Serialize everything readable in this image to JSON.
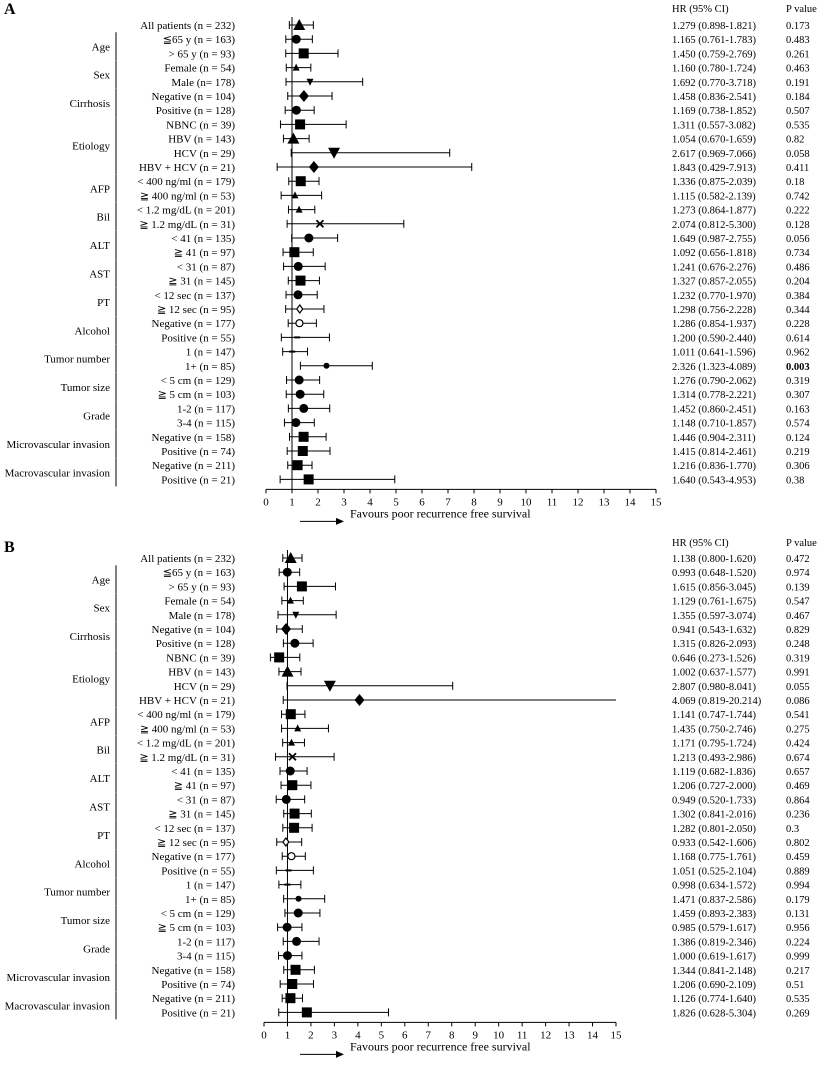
{
  "chart_data": [
    {
      "type": "forest",
      "panel_label": "A",
      "title": "",
      "xlabel": "Favours poor recurrence free survival",
      "xlim": [
        0,
        15
      ],
      "xticks": [
        0,
        1,
        2,
        3,
        4,
        5,
        6,
        7,
        8,
        9,
        10,
        11,
        12,
        13,
        14,
        15
      ],
      "reference_line": 1,
      "col_headers": {
        "hr": "HR (95% CI)",
        "p": "P value"
      },
      "groups": [
        {
          "label": "Age",
          "first": 1,
          "last": 2
        },
        {
          "label": "Sex",
          "first": 3,
          "last": 4
        },
        {
          "label": "Cirrhosis",
          "first": 5,
          "last": 6
        },
        {
          "label": "Etiology",
          "first": 7,
          "last": 10
        },
        {
          "label": "AFP",
          "first": 11,
          "last": 12
        },
        {
          "label": "Bil",
          "first": 13,
          "last": 14
        },
        {
          "label": "ALT",
          "first": 15,
          "last": 16
        },
        {
          "label": "AST",
          "first": 17,
          "last": 18
        },
        {
          "label": "PT",
          "first": 19,
          "last": 20
        },
        {
          "label": "Alcohol",
          "first": 21,
          "last": 22
        },
        {
          "label": "Tumor number",
          "first": 23,
          "last": 24
        },
        {
          "label": "Tumor size",
          "first": 25,
          "last": 26
        },
        {
          "label": "Grade",
          "first": 27,
          "last": 28
        },
        {
          "label": "Microvascular invasion",
          "first": 29,
          "last": 30
        },
        {
          "label": "Macrovascular invasion",
          "first": 31,
          "last": 32
        }
      ],
      "rows": [
        {
          "label": "All patients (n = 232)",
          "hr": 1.279,
          "lo": 0.898,
          "hi": 1.821,
          "hr_text": "1.279 (0.898-1.821)",
          "p": "0.173",
          "marker": "triangle"
        },
        {
          "label": "≦65 y (n = 163)",
          "hr": 1.165,
          "lo": 0.761,
          "hi": 1.783,
          "hr_text": "1.165 (0.761-1.783)",
          "p": "0.483",
          "marker": "circle"
        },
        {
          "label": "> 65 y (n = 93)",
          "hr": 1.45,
          "lo": 0.759,
          "hi": 2.769,
          "hr_text": "1.450 (0.759-2.769)",
          "p": "0.261",
          "marker": "square"
        },
        {
          "label": "Female (n = 54)",
          "hr": 1.16,
          "lo": 0.78,
          "hi": 1.724,
          "hr_text": "1.160 (0.780-1.724)",
          "p": "0.463",
          "marker": "smalltri"
        },
        {
          "label": "Male (n= 178)",
          "hr": 1.692,
          "lo": 0.77,
          "hi": 3.718,
          "hr_text": "1.692 (0.770-3.718)",
          "p": "0.191",
          "marker": "smalltri-down"
        },
        {
          "label": "Negative (n = 104)",
          "hr": 1.458,
          "lo": 0.836,
          "hi": 2.541,
          "hr_text": "1.458 (0.836-2.541)",
          "p": "0.184",
          "marker": "diamond"
        },
        {
          "label": "Positive (n = 128)",
          "hr": 1.169,
          "lo": 0.738,
          "hi": 1.852,
          "hr_text": "1.169 (0.738-1.852)",
          "p": "0.507",
          "marker": "circle"
        },
        {
          "label": "NBNC (n = 39)",
          "hr": 1.311,
          "lo": 0.557,
          "hi": 3.082,
          "hr_text": "1.311 (0.557-3.082)",
          "p": "0.535",
          "marker": "square"
        },
        {
          "label": "HBV (n = 143)",
          "hr": 1.054,
          "lo": 0.67,
          "hi": 1.659,
          "hr_text": "1.054 (0.670-1.659)",
          "p": "0.82",
          "marker": "triangle"
        },
        {
          "label": "HCV (n = 29)",
          "hr": 2.617,
          "lo": 0.969,
          "hi": 7.066,
          "hr_text": "2.617 (0.969-7.066)",
          "p": "0.058",
          "marker": "tri-down"
        },
        {
          "label": "HBV + HCV (n = 21)",
          "hr": 1.843,
          "lo": 0.429,
          "hi": 7.913,
          "hr_text": "1.843 (0.429-7.913)",
          "p": "0.411",
          "marker": "diamond"
        },
        {
          "label": "< 400 ng/ml (n = 179)",
          "hr": 1.336,
          "lo": 0.875,
          "hi": 2.039,
          "hr_text": "1.336 (0.875-2.039)",
          "p": "0.18",
          "marker": "square"
        },
        {
          "label": "≧ 400 ng/ml (n = 53)",
          "hr": 1.115,
          "lo": 0.582,
          "hi": 2.139,
          "hr_text": "1.115 (0.582-2.139)",
          "p": "0.742",
          "marker": "smalltri"
        },
        {
          "label": "< 1.2 mg/dL (n = 201)",
          "hr": 1.273,
          "lo": 0.864,
          "hi": 1.877,
          "hr_text": "1.273 (0.864-1.877)",
          "p": "0.222",
          "marker": "smalltri"
        },
        {
          "label": "≧ 1.2 mg/dL (n = 31)",
          "hr": 2.074,
          "lo": 0.812,
          "hi": 5.3,
          "hr_text": "2.074 (0.812-5.300)",
          "p": "0.128",
          "marker": "cross"
        },
        {
          "label": "< 41 (n = 135)",
          "hr": 1.649,
          "lo": 0.987,
          "hi": 2.755,
          "hr_text": "1.649 (0.987-2.755)",
          "p": "0.056",
          "marker": "circle"
        },
        {
          "label": "≧ 41 (n = 97)",
          "hr": 1.092,
          "lo": 0.656,
          "hi": 1.818,
          "hr_text": "1.092 (0.656-1.818)",
          "p": "0.734",
          "marker": "square"
        },
        {
          "label": "< 31 (n = 87)",
          "hr": 1.241,
          "lo": 0.676,
          "hi": 2.276,
          "hr_text": "1.241 (0.676-2.276)",
          "p": "0.486",
          "marker": "circle"
        },
        {
          "label": "≧ 31 (n = 145)",
          "hr": 1.327,
          "lo": 0.857,
          "hi": 2.055,
          "hr_text": "1.327 (0.857-2.055)",
          "p": "0.204",
          "marker": "square"
        },
        {
          "label": "< 12 sec (n = 137)",
          "hr": 1.232,
          "lo": 0.77,
          "hi": 1.97,
          "hr_text": "1.232 (0.770-1.970)",
          "p": "0.384",
          "marker": "circle"
        },
        {
          "label": "≧ 12 sec (n = 95)",
          "hr": 1.298,
          "lo": 0.756,
          "hi": 2.228,
          "hr_text": "1.298 (0.756-2.228)",
          "p": "0.344",
          "marker": "hollow-diamond"
        },
        {
          "label": "Negative (n = 177)",
          "hr": 1.286,
          "lo": 0.854,
          "hi": 1.937,
          "hr_text": "1.286 (0.854-1.937)",
          "p": "0.228",
          "marker": "hollow-circle"
        },
        {
          "label": "Positive (n = 55)",
          "hr": 1.2,
          "lo": 0.59,
          "hi": 2.44,
          "hr_text": "1.200 (0.590-2.440)",
          "p": "0.614",
          "marker": "dash"
        },
        {
          "label": "1 (n = 147)",
          "hr": 1.011,
          "lo": 0.641,
          "hi": 1.596,
          "hr_text": "1.011 (0.641-1.596)",
          "p": "0.962",
          "marker": "dash"
        },
        {
          "label": "1+ (n = 85)",
          "hr": 2.326,
          "lo": 1.323,
          "hi": 4.089,
          "hr_text": "2.326 (1.323-4.089)",
          "p": "0.003",
          "marker": "dot",
          "highlight": true
        },
        {
          "label": "< 5 cm (n = 129)",
          "hr": 1.276,
          "lo": 0.79,
          "hi": 2.062,
          "hr_text": "1.276 (0.790-2.062)",
          "p": "0.319",
          "marker": "circle"
        },
        {
          "label": "≧ 5 cm (n = 103)",
          "hr": 1.314,
          "lo": 0.778,
          "hi": 2.221,
          "hr_text": "1.314 (0.778-2.221)",
          "p": "0.307",
          "marker": "circle"
        },
        {
          "label": "1-2 (n = 117)",
          "hr": 1.452,
          "lo": 0.86,
          "hi": 2.451,
          "hr_text": "1.452 (0.860-2.451)",
          "p": "0.163",
          "marker": "circle"
        },
        {
          "label": "3-4 (n = 115)",
          "hr": 1.148,
          "lo": 0.71,
          "hi": 1.857,
          "hr_text": "1.148 (0.710-1.857)",
          "p": "0.574",
          "marker": "circle"
        },
        {
          "label": "Negative (n = 158)",
          "hr": 1.446,
          "lo": 0.904,
          "hi": 2.311,
          "hr_text": "1.446 (0.904-2.311)",
          "p": "0.124",
          "marker": "square"
        },
        {
          "label": "Positive (n = 74)",
          "hr": 1.415,
          "lo": 0.814,
          "hi": 2.461,
          "hr_text": "1.415 (0.814-2.461)",
          "p": "0.219",
          "marker": "square"
        },
        {
          "label": "Negative (n = 211)",
          "hr": 1.216,
          "lo": 0.836,
          "hi": 1.77,
          "hr_text": "1.216 (0.836-1.770)",
          "p": "0.306",
          "marker": "square"
        },
        {
          "label": "Positive (n = 21)",
          "hr": 1.64,
          "lo": 0.543,
          "hi": 4.953,
          "hr_text": "1.640 (0.543-4.953)",
          "p": "0.38",
          "marker": "square"
        }
      ]
    },
    {
      "type": "forest",
      "panel_label": "B",
      "title": "",
      "xlabel": "Favours poor recurrence free survival",
      "xlim": [
        0,
        15
      ],
      "xticks": [
        0,
        1,
        2,
        3,
        4,
        5,
        6,
        7,
        8,
        9,
        10,
        11,
        12,
        13,
        14,
        15
      ],
      "reference_line": 1,
      "col_headers": {
        "hr": "HR (95% CI)",
        "p": "P value"
      },
      "groups": [
        {
          "label": "Age",
          "first": 1,
          "last": 2
        },
        {
          "label": "Sex",
          "first": 3,
          "last": 4
        },
        {
          "label": "Cirrhosis",
          "first": 5,
          "last": 6
        },
        {
          "label": "Etiology",
          "first": 7,
          "last": 10
        },
        {
          "label": "AFP",
          "first": 11,
          "last": 12
        },
        {
          "label": "Bil",
          "first": 13,
          "last": 14
        },
        {
          "label": "ALT",
          "first": 15,
          "last": 16
        },
        {
          "label": "AST",
          "first": 17,
          "last": 18
        },
        {
          "label": "PT",
          "first": 19,
          "last": 20
        },
        {
          "label": "Alcohol",
          "first": 21,
          "last": 22
        },
        {
          "label": "Tumor number",
          "first": 23,
          "last": 24
        },
        {
          "label": "Tumor size",
          "first": 25,
          "last": 26
        },
        {
          "label": "Grade",
          "first": 27,
          "last": 28
        },
        {
          "label": "Microvascular invasion",
          "first": 29,
          "last": 30
        },
        {
          "label": "Macrovascular invasion",
          "first": 31,
          "last": 32
        }
      ],
      "rows": [
        {
          "label": "All patients (n = 232)",
          "hr": 1.138,
          "lo": 0.8,
          "hi": 1.62,
          "hr_text": "1.138 (0.800-1.620)",
          "p": "0.472",
          "marker": "triangle"
        },
        {
          "label": "≦65 y (n = 163)",
          "hr": 0.993,
          "lo": 0.648,
          "hi": 1.52,
          "hr_text": "0.993 (0.648-1.520)",
          "p": "0.974",
          "marker": "circle"
        },
        {
          "label": "> 65 y (n = 93)",
          "hr": 1.615,
          "lo": 0.856,
          "hi": 3.045,
          "hr_text": "1.615 (0.856-3.045)",
          "p": "0.139",
          "marker": "square"
        },
        {
          "label": "Female (n = 54)",
          "hr": 1.129,
          "lo": 0.761,
          "hi": 1.675,
          "hr_text": "1.129 (0.761-1.675)",
          "p": "0.547",
          "marker": "smalltri"
        },
        {
          "label": "Male (n = 178)",
          "hr": 1.355,
          "lo": 0.597,
          "hi": 3.074,
          "hr_text": "1.355 (0.597-3.074)",
          "p": "0.467",
          "marker": "smalltri-down"
        },
        {
          "label": "Negative (n = 104)",
          "hr": 0.941,
          "lo": 0.543,
          "hi": 1.632,
          "hr_text": "0.941 (0.543-1.632)",
          "p": "0.829",
          "marker": "diamond"
        },
        {
          "label": "Positive (n = 128)",
          "hr": 1.315,
          "lo": 0.826,
          "hi": 2.093,
          "hr_text": "1.315 (0.826-2.093)",
          "p": "0.248",
          "marker": "circle"
        },
        {
          "label": "NBNC (n = 39)",
          "hr": 0.646,
          "lo": 0.273,
          "hi": 1.526,
          "hr_text": "0.646 (0.273-1.526)",
          "p": "0.319",
          "marker": "square"
        },
        {
          "label": "HBV (n = 143)",
          "hr": 1.002,
          "lo": 0.637,
          "hi": 1.577,
          "hr_text": "1.002 (0.637-1.577)",
          "p": "0.991",
          "marker": "triangle"
        },
        {
          "label": "HCV (n = 29)",
          "hr": 2.807,
          "lo": 0.98,
          "hi": 8.041,
          "hr_text": "2.807 (0.980-8.041)",
          "p": "0.055",
          "marker": "tri-down"
        },
        {
          "label": "HBV + HCV (n = 21)",
          "hr": 4.069,
          "lo": 0.819,
          "hi": 20.214,
          "hr_text": "4.069 (0.819-20.214)",
          "p": "0.086",
          "marker": "diamond"
        },
        {
          "label": "< 400 ng/ml (n = 179)",
          "hr": 1.141,
          "lo": 0.747,
          "hi": 1.744,
          "hr_text": "1.141 (0.747-1.744)",
          "p": "0.541",
          "marker": "square"
        },
        {
          "label": "≧ 400 ng/ml (n = 53)",
          "hr": 1.435,
          "lo": 0.75,
          "hi": 2.746,
          "hr_text": "1.435 (0.750-2.746)",
          "p": "0.275",
          "marker": "smalltri"
        },
        {
          "label": "< 1.2 mg/dL (n = 201)",
          "hr": 1.171,
          "lo": 0.795,
          "hi": 1.724,
          "hr_text": "1.171 (0.795-1.724)",
          "p": "0.424",
          "marker": "smalltri"
        },
        {
          "label": "≧ 1.2 mg/dL (n = 31)",
          "hr": 1.213,
          "lo": 0.493,
          "hi": 2.986,
          "hr_text": "1.213 (0.493-2.986)",
          "p": "0.674",
          "marker": "cross"
        },
        {
          "label": "< 41 (n = 135)",
          "hr": 1.119,
          "lo": 0.682,
          "hi": 1.836,
          "hr_text": "1.119 (0.682-1.836)",
          "p": "0.657",
          "marker": "circle"
        },
        {
          "label": "≧ 41 (n = 97)",
          "hr": 1.206,
          "lo": 0.727,
          "hi": 2.0,
          "hr_text": "1.206 (0.727-2.000)",
          "p": "0.469",
          "marker": "square"
        },
        {
          "label": "< 31 (n = 87)",
          "hr": 0.949,
          "lo": 0.52,
          "hi": 1.733,
          "hr_text": "0.949 (0.520-1.733)",
          "p": "0.864",
          "marker": "circle"
        },
        {
          "label": "≧ 31 (n = 145)",
          "hr": 1.302,
          "lo": 0.841,
          "hi": 2.016,
          "hr_text": "1.302 (0.841-2.016)",
          "p": "0.236",
          "marker": "square"
        },
        {
          "label": "< 12 sec (n = 137)",
          "hr": 1.282,
          "lo": 0.801,
          "hi": 2.05,
          "hr_text": "1.282 (0.801-2.050)",
          "p": "0.3",
          "marker": "square"
        },
        {
          "label": "≧ 12 sec (n = 95)",
          "hr": 0.933,
          "lo": 0.542,
          "hi": 1.606,
          "hr_text": "0.933 (0.542-1.606)",
          "p": "0.802",
          "marker": "hollow-diamond"
        },
        {
          "label": "Negative (n = 177)",
          "hr": 1.168,
          "lo": 0.775,
          "hi": 1.761,
          "hr_text": "1.168 (0.775-1.761)",
          "p": "0.459",
          "marker": "hollow-circle"
        },
        {
          "label": "Positive (n = 55)",
          "hr": 1.051,
          "lo": 0.525,
          "hi": 2.104,
          "hr_text": "1.051 (0.525-2.104)",
          "p": "0.889",
          "marker": "dash"
        },
        {
          "label": "1 (n = 147)",
          "hr": 0.998,
          "lo": 0.634,
          "hi": 1.572,
          "hr_text": "0.998 (0.634-1.572)",
          "p": "0.994",
          "marker": "dash"
        },
        {
          "label": "1+ (n = 85)",
          "hr": 1.471,
          "lo": 0.837,
          "hi": 2.586,
          "hr_text": "1.471 (0.837-2.586)",
          "p": "0.179",
          "marker": "dot"
        },
        {
          "label": "< 5 cm (n = 129)",
          "hr": 1.459,
          "lo": 0.893,
          "hi": 2.383,
          "hr_text": "1.459 (0.893-2.383)",
          "p": "0.131",
          "marker": "circle"
        },
        {
          "label": "≧ 5 cm (n = 103)",
          "hr": 0.985,
          "lo": 0.579,
          "hi": 1.617,
          "hr_text": "0.985 (0.579-1.617)",
          "p": "0.956",
          "marker": "circle"
        },
        {
          "label": "1-2 (n = 117)",
          "hr": 1.386,
          "lo": 0.819,
          "hi": 2.346,
          "hr_text": "1.386 (0.819-2.346)",
          "p": "0.224",
          "marker": "circle"
        },
        {
          "label": "3-4 (n = 115)",
          "hr": 1.0,
          "lo": 0.619,
          "hi": 1.617,
          "hr_text": "1.000 (0.619-1.617)",
          "p": "0.999",
          "marker": "circle"
        },
        {
          "label": "Negative (n = 158)",
          "hr": 1.344,
          "lo": 0.841,
          "hi": 2.148,
          "hr_text": "1.344 (0.841-2.148)",
          "p": "0.217",
          "marker": "square"
        },
        {
          "label": "Positive (n = 74)",
          "hr": 1.206,
          "lo": 0.69,
          "hi": 2.109,
          "hr_text": "1.206 (0.690-2.109)",
          "p": "0.51",
          "marker": "square"
        },
        {
          "label": "Negative (n = 211)",
          "hr": 1.126,
          "lo": 0.774,
          "hi": 1.64,
          "hr_text": "1.126 (0.774-1.640)",
          "p": "0.535",
          "marker": "square"
        },
        {
          "label": "Positive (n = 21)",
          "hr": 1.826,
          "lo": 0.628,
          "hi": 5.304,
          "hr_text": "1.826 (0.628-5.304)",
          "p": "0.269",
          "marker": "square"
        }
      ]
    }
  ],
  "style": {
    "ink": "#000000",
    "highlight": "#1f3fbf",
    "background": "#ffffff"
  }
}
